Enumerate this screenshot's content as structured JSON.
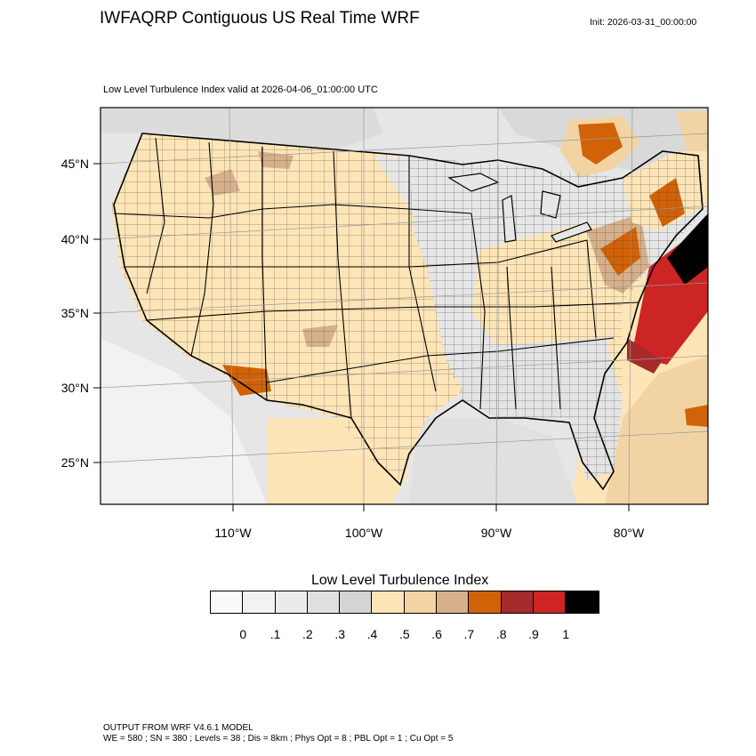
{
  "header": {
    "title": "IWFAQRP Contiguous US Real Time WRF",
    "init": "Init: 2026-03-31_00:00:00",
    "subtitle": "Low Level Turbulence Index valid at 2026-04-06_01:00:00 UTC"
  },
  "axes": {
    "lat_labels": [
      "45°N",
      "40°N",
      "35°N",
      "30°N",
      "25°N"
    ],
    "lon_labels": [
      "110°W",
      "100°W",
      "90°W",
      "80°W"
    ]
  },
  "colorbar": {
    "title": "Low Level Turbulence Index",
    "colors": [
      "#fafafa",
      "#f2f2f2",
      "#ebebeb",
      "#e0e0e0",
      "#d4d4d4",
      "#fde5b7",
      "#f2d4a4",
      "#d6b08a",
      "#d26207",
      "#a52a2a",
      "#cd2424",
      "#000000"
    ],
    "labels": [
      "0",
      ".1",
      ".2",
      ".3",
      ".4",
      ".5",
      ".6",
      ".7",
      ".8",
      ".9",
      "1"
    ]
  },
  "footer": {
    "line1": "OUTPUT FROM WRF V4.6.1 MODEL",
    "line2": "WE = 580 ; SN = 380 ; Levels = 38 ; Dis = 8km ; Phys Opt = 8 ; PBL Opt = 1 ; Cu Opt = 5"
  }
}
